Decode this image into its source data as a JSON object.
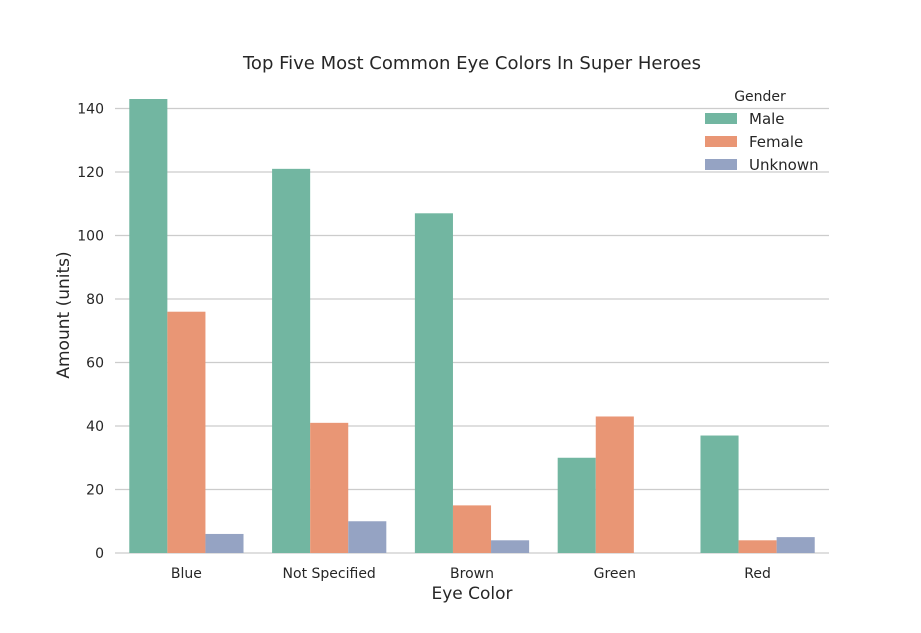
{
  "chart_data": {
    "type": "bar",
    "title": "Top Five Most Common Eye Colors In Super Heroes",
    "xlabel": "Eye Color",
    "ylabel": "Amount (units)",
    "categories": [
      "Blue",
      "Not Specified",
      "Brown",
      "Green",
      "Red"
    ],
    "series": [
      {
        "name": "Male",
        "color": "#72b6a1",
        "values": [
          143,
          121,
          107,
          30,
          37
        ]
      },
      {
        "name": "Female",
        "color": "#e99675",
        "values": [
          76,
          41,
          15,
          43,
          4
        ]
      },
      {
        "name": "Unknown",
        "color": "#95a3c3",
        "values": [
          6,
          10,
          4,
          0,
          5
        ]
      }
    ],
    "ylim": [
      0,
      143
    ],
    "yticks": [
      0,
      20,
      40,
      60,
      80,
      100,
      120,
      140
    ],
    "grid": true,
    "legend": {
      "title": "Gender",
      "placement": "top-right"
    }
  }
}
